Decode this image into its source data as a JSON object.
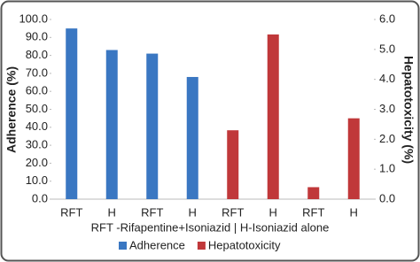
{
  "chart_data": {
    "type": "bar",
    "categories": [
      "RFT",
      "H",
      "RFT",
      "H",
      "RFT",
      "H",
      "RFT",
      "H"
    ],
    "x_label": "RFT -Rifapentine+Isoniazid | H-Isoniazid alone",
    "y_label": "Adherence (%)",
    "y2_label": "Hepatotoxicity (%)",
    "series": [
      {
        "name": "Adherence",
        "color": "#3a77c2",
        "values": [
          95,
          83,
          81,
          68,
          null,
          null,
          null,
          null
        ]
      },
      {
        "name": "Hepatotoxicity",
        "color": "#c0383a",
        "axis": "y2",
        "values": [
          null,
          null,
          null,
          null,
          2.3,
          5.5,
          0.4,
          2.7
        ]
      }
    ],
    "ylim": [
      0,
      100
    ],
    "yticks": [
      {
        "value": 0,
        "label": "0.0"
      },
      {
        "value": 10,
        "label": "10.0"
      },
      {
        "value": 20,
        "label": "20.0"
      },
      {
        "value": 30,
        "label": "30.0"
      },
      {
        "value": 40,
        "label": "40.0"
      },
      {
        "value": 50,
        "label": "50.0"
      },
      {
        "value": 60,
        "label": "60.0"
      },
      {
        "value": 70,
        "label": "70.0"
      },
      {
        "value": 80,
        "label": "80.0"
      },
      {
        "value": 90,
        "label": "90.0"
      },
      {
        "value": 100,
        "label": "100.0"
      }
    ],
    "y2lim": [
      0,
      6
    ],
    "y2ticks": [
      {
        "value": 0,
        "label": "0.0"
      },
      {
        "value": 1,
        "label": "1.0"
      },
      {
        "value": 2,
        "label": "2.0"
      },
      {
        "value": 3,
        "label": "3.0"
      },
      {
        "value": 4,
        "label": "4.0"
      },
      {
        "value": 5,
        "label": "5.0"
      },
      {
        "value": 6,
        "label": "6.0"
      }
    ],
    "legend": "bottom"
  }
}
